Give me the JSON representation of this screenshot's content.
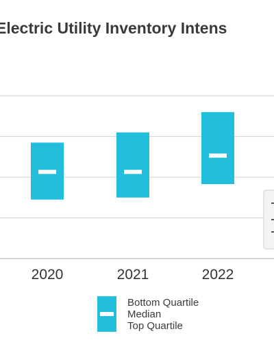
{
  "chart_data": {
    "type": "range-bar",
    "title": "Electric Utility Inventory Intens",
    "categories": [
      "2020",
      "2021",
      "2022"
    ],
    "series": [
      {
        "name": "Bottom Quartile",
        "values": [
          1.45,
          1.5,
          1.83
        ]
      },
      {
        "name": "Median",
        "values": [
          2.13,
          2.13,
          2.53
        ]
      },
      {
        "name": "Top Quartile",
        "values": [
          2.85,
          3.1,
          3.6
        ]
      }
    ],
    "grid": true,
    "legend_placement": "bottom-center",
    "colors": {
      "bar": "#22bedb",
      "median": "#ffffff",
      "grid": "#d6d6d6"
    }
  },
  "legend": {
    "labels": [
      "Bottom Quartile",
      "Median",
      "Top Quartile"
    ]
  }
}
